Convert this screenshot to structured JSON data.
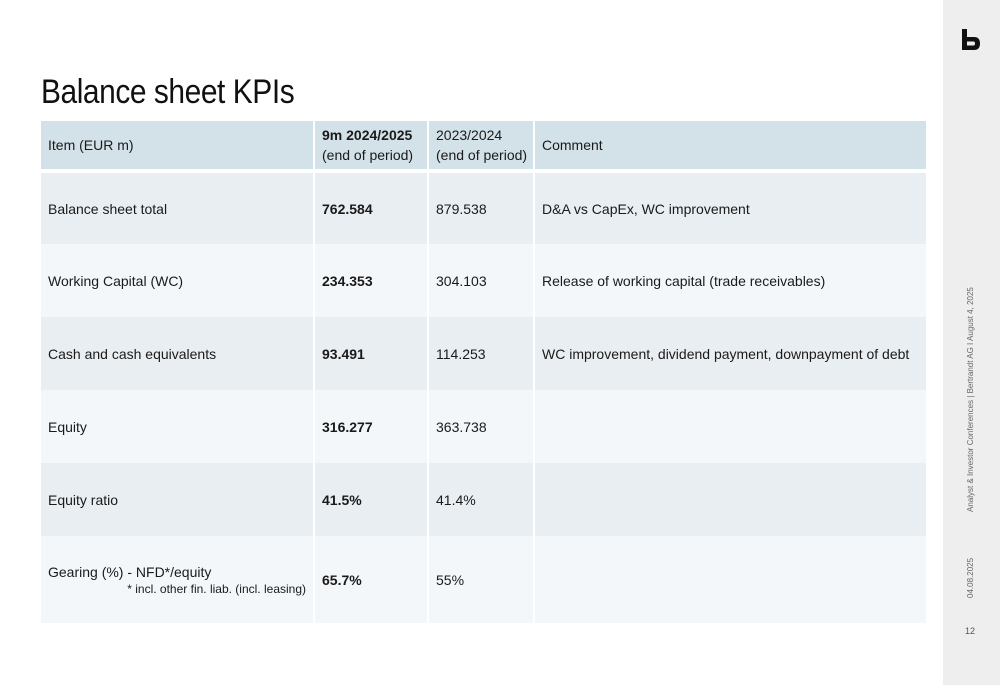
{
  "title": "Balance sheet KPIs",
  "table": {
    "header": {
      "item": "Item (EUR m)",
      "current_line1": "9m 2024/2025",
      "current_line2": "(end of period)",
      "previous_line1": "2023/2024",
      "previous_line2": "(end of period)",
      "comment": "Comment"
    },
    "rows": [
      {
        "item": "Balance sheet total",
        "current": "762.584",
        "previous": "879.538",
        "comment": "D&A vs CapEx, WC improvement"
      },
      {
        "item": "Working Capital (WC)",
        "current": "234.353",
        "previous": "304.103",
        "comment": "Release of working capital (trade receivables)"
      },
      {
        "item": "Cash and cash equivalents",
        "current": "93.491",
        "previous": "114.253",
        "comment": "WC improvement, dividend payment, downpayment of debt"
      },
      {
        "item": "Equity",
        "current": "316.277",
        "previous": "363.738",
        "comment": ""
      },
      {
        "item": "Equity ratio",
        "current": "41.5%",
        "previous": "41.4%",
        "comment": ""
      },
      {
        "item": "Gearing (%) - NFD*/equity",
        "footnote": "* incl. other fin. liab. (incl. leasing)",
        "current": "65.7%",
        "previous": "55%",
        "comment": ""
      }
    ]
  },
  "sidebar": {
    "logo_icon": "bertrandt-b-logo-icon",
    "conference": "Analyst & Investor Conferences | Bertrandt AG I August 4, 2025",
    "date": "04.08.2025",
    "page_number": "12"
  }
}
